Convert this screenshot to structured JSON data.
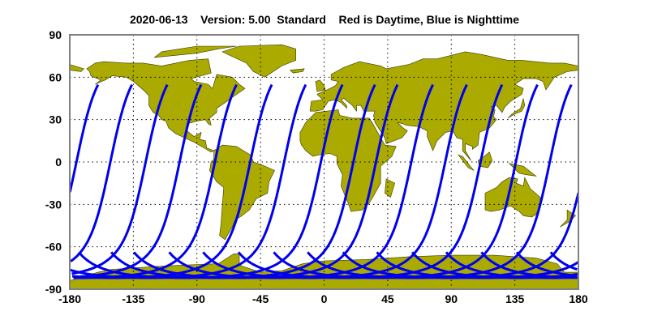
{
  "title": "2020-06-13    Version: 5.00  Standard    Red is Daytime, Blue is Nighttime",
  "map": {
    "projection": "equirectangular",
    "lon_range": [
      -180,
      180
    ],
    "lat_range": [
      -90,
      90
    ],
    "x_ticks": [
      "-180",
      "-135",
      "-90",
      "-45",
      "0",
      "45",
      "90",
      "135",
      "180"
    ],
    "y_ticks": [
      "90",
      "60",
      "30",
      "0",
      "-30",
      "-60",
      "-90"
    ],
    "grid": "dotted",
    "land_color": "#aaaa00",
    "track_color": "#0000ee",
    "track_northern_end_lat": 55,
    "track_northern_end_lons": [
      -160,
      -136,
      -111,
      -87,
      -62,
      -37,
      -13,
      13,
      36,
      52,
      77,
      101,
      126,
      151,
      175
    ]
  }
}
